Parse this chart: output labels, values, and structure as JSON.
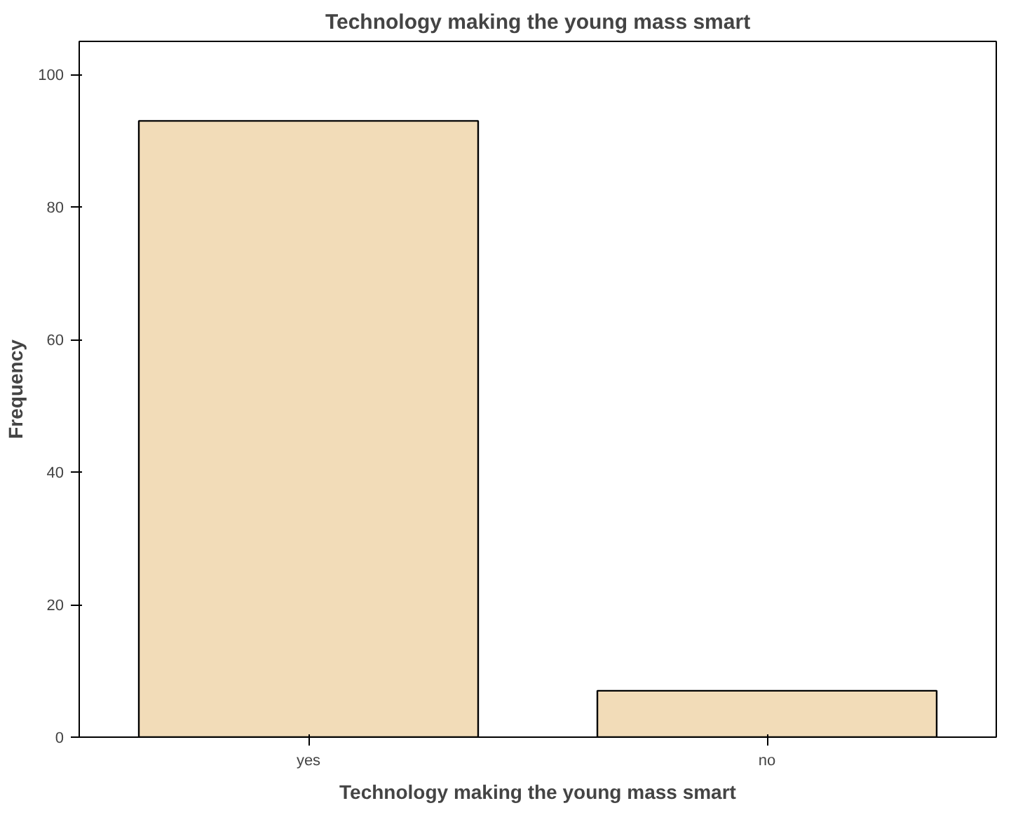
{
  "chart_data": {
    "type": "bar",
    "title": "Technology making the young mass smart",
    "xlabel": "Technology making the young mass smart",
    "ylabel": "Frequency",
    "categories": [
      "yes",
      "no"
    ],
    "values": [
      93,
      7
    ],
    "color": "#f2dcb8",
    "ylim": [
      0,
      105
    ],
    "yticks": [
      0,
      20,
      40,
      60,
      80,
      100
    ],
    "grid": false
  }
}
